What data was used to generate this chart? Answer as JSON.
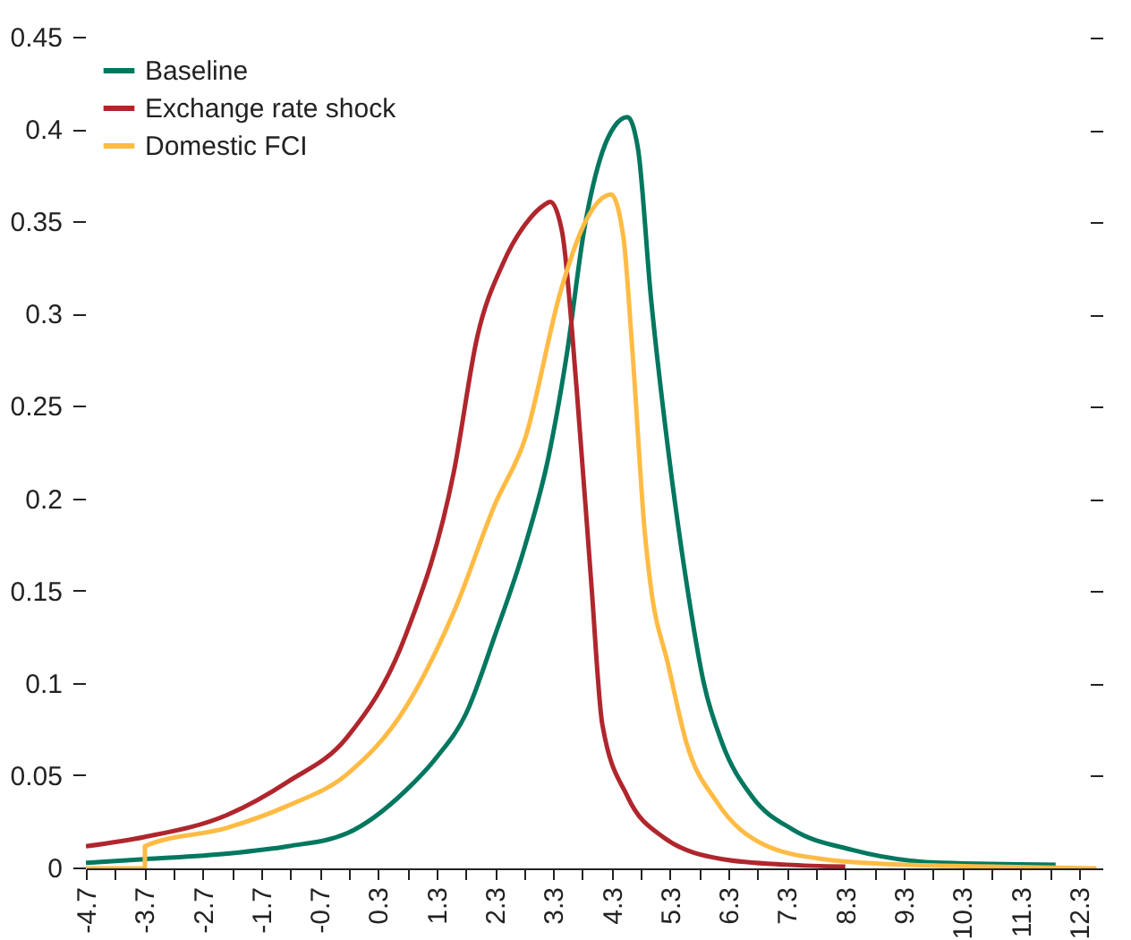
{
  "chart_data": {
    "type": "line",
    "series": [
      {
        "name": "Baseline",
        "color": "#00775f",
        "x": [
          -4.7,
          -3.7,
          -2.28,
          -1.24,
          -0.23,
          0.77,
          1.3,
          1.81,
          2.3,
          2.82,
          3.22,
          3.53,
          3.83,
          4.14,
          4.35,
          4.57,
          4.75,
          4.97,
          5.27,
          5.58,
          5.88,
          6.19,
          6.7,
          7.4,
          8.42,
          9.95,
          11.9
        ],
        "values": [
          0.003,
          0.005,
          0.008,
          0.012,
          0.019,
          0.042,
          0.06,
          0.084,
          0.126,
          0.175,
          0.223,
          0.278,
          0.346,
          0.388,
          0.402,
          0.407,
          0.39,
          0.31,
          0.226,
          0.155,
          0.1,
          0.068,
          0.039,
          0.021,
          0.01,
          0.003,
          0.002
        ]
      },
      {
        "name": "Exchange rate shock",
        "color": "#b0262d",
        "x": [
          -4.7,
          -3.7,
          -2.28,
          -1.24,
          -0.23,
          0.77,
          1.6,
          2.0,
          2.43,
          2.9,
          3.13,
          3.25,
          3.45,
          3.7,
          3.95,
          4.14,
          4.57,
          5.18,
          6.2,
          7.3,
          8.3
        ],
        "values": [
          0.012,
          0.017,
          0.029,
          0.047,
          0.071,
          0.126,
          0.215,
          0.288,
          0.327,
          0.352,
          0.359,
          0.361,
          0.345,
          0.26,
          0.155,
          0.078,
          0.039,
          0.017,
          0.005,
          0.002,
          0.001
        ]
      },
      {
        "name": "Domestic FCI",
        "color": "#ffbb44",
        "x": [
          -4.7,
          -3.69,
          -3.69,
          -2.28,
          -1.24,
          -0.23,
          0.77,
          1.6,
          2.3,
          2.82,
          3.43,
          3.83,
          4.1,
          4.29,
          4.5,
          4.66,
          4.87,
          4.96,
          5.27,
          5.58,
          6.1,
          6.9,
          7.93,
          9.3,
          10.8,
          12.6
        ],
        "values": [
          0,
          0,
          0.012,
          0.022,
          0.034,
          0.051,
          0.087,
          0.139,
          0.197,
          0.233,
          0.313,
          0.349,
          0.362,
          0.365,
          0.342,
          0.278,
          0.181,
          0.155,
          0.11,
          0.068,
          0.036,
          0.013,
          0.005,
          0.002,
          0.001,
          0
        ]
      }
    ],
    "xlim": [
      -4.7,
      12.7
    ],
    "xticks": [
      -4.7,
      {
        "value": -4.2,
        "label": null
      },
      -3.7,
      {
        "value": -3.2,
        "label": null
      },
      -2.7,
      {
        "value": -2.2,
        "label": null
      },
      -1.7,
      {
        "value": -1.2,
        "label": null
      },
      -0.7,
      {
        "value": -0.2,
        "label": null
      },
      0.3,
      {
        "value": 0.8,
        "label": null
      },
      1.3,
      {
        "value": 1.8,
        "label": null
      },
      2.3,
      {
        "value": 2.8,
        "label": null
      },
      3.3,
      {
        "value": 3.8,
        "label": null
      },
      4.3,
      {
        "value": 4.8,
        "label": null
      },
      5.3,
      {
        "value": 5.8,
        "label": null
      },
      6.3,
      {
        "value": 6.8,
        "label": null
      },
      7.3,
      {
        "value": 7.8,
        "label": null
      },
      8.3,
      {
        "value": 8.8,
        "label": null
      },
      9.3,
      {
        "value": 9.8,
        "label": null
      },
      10.3,
      {
        "value": 10.8,
        "label": null
      },
      11.3,
      {
        "value": 11.8,
        "label": null
      },
      12.3
    ],
    "ylim": [
      0,
      0.45
    ],
    "yticks": [
      0,
      0.05,
      0.1,
      0.15,
      0.2,
      0.25,
      0.3,
      0.35,
      0.4,
      0.45
    ],
    "grid": false,
    "legend": "top left"
  }
}
